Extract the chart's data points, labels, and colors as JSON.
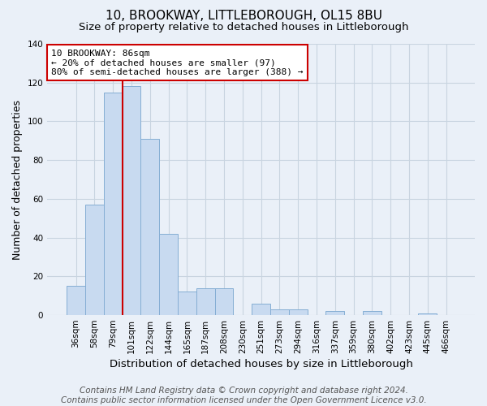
{
  "title": "10, BROOKWAY, LITTLEBOROUGH, OL15 8BU",
  "subtitle": "Size of property relative to detached houses in Littleborough",
  "xlabel": "Distribution of detached houses by size in Littleborough",
  "ylabel": "Number of detached properties",
  "footer_line1": "Contains HM Land Registry data © Crown copyright and database right 2024.",
  "footer_line2": "Contains public sector information licensed under the Open Government Licence v3.0.",
  "categories": [
    "36sqm",
    "58sqm",
    "79sqm",
    "101sqm",
    "122sqm",
    "144sqm",
    "165sqm",
    "187sqm",
    "208sqm",
    "230sqm",
    "251sqm",
    "273sqm",
    "294sqm",
    "316sqm",
    "337sqm",
    "359sqm",
    "380sqm",
    "402sqm",
    "423sqm",
    "445sqm",
    "466sqm"
  ],
  "values": [
    15,
    57,
    115,
    118,
    91,
    42,
    12,
    14,
    14,
    0,
    6,
    3,
    3,
    0,
    2,
    0,
    2,
    0,
    0,
    1,
    0
  ],
  "bar_color": "#c8daf0",
  "bar_edge_color": "#85aed4",
  "red_line_x": 2.5,
  "annotation_line1": "10 BROOKWAY: 86sqm",
  "annotation_line2": "← 20% of detached houses are smaller (97)",
  "annotation_line3": "80% of semi-detached houses are larger (388) →",
  "annotation_box_color": "#ffffff",
  "annotation_box_edge": "#cc0000",
  "ylim": [
    0,
    140
  ],
  "yticks": [
    0,
    20,
    40,
    60,
    80,
    100,
    120,
    140
  ],
  "grid_color": "#c8d4e0",
  "bg_color": "#eaf0f8",
  "title_fontsize": 11,
  "subtitle_fontsize": 9.5,
  "xlabel_fontsize": 9.5,
  "ylabel_fontsize": 9,
  "tick_fontsize": 7.5,
  "annot_fontsize": 8,
  "footer_fontsize": 7.5
}
